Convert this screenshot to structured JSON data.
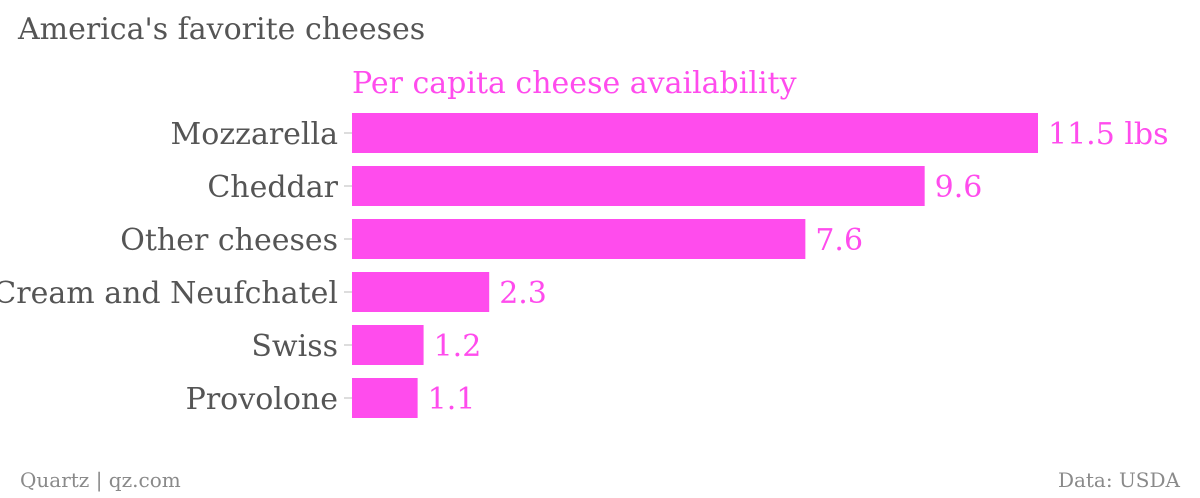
{
  "chart_title": "America's favorite cheeses",
  "credit": "Quartz | qz.com",
  "source": "Data: USDA",
  "accent_color": "#ff4ced",
  "label_color": "#555555",
  "chart_data": {
    "type": "bar",
    "orientation": "horizontal",
    "series": [
      {
        "name": "Per capita cheese availability",
        "values": [
          11.5,
          9.6,
          7.6,
          2.3,
          1.2,
          1.1
        ]
      }
    ],
    "categories": [
      "Mozzarella",
      "Cheddar",
      "Other cheeses",
      "Cream and Neufchatel",
      "Swiss",
      "Provolone"
    ],
    "value_labels": [
      "11.5 lbs",
      "9.6",
      "7.6",
      "2.3",
      "1.2",
      "1.1"
    ],
    "unit": "lbs",
    "xlim": [
      0,
      11.5
    ],
    "grid": false,
    "legend": "top"
  }
}
